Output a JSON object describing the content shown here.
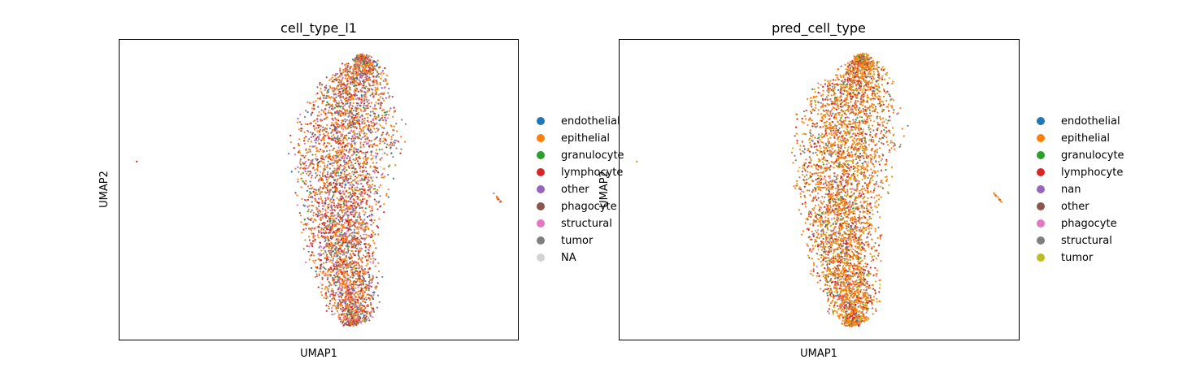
{
  "chart_data": [
    {
      "type": "scatter",
      "title": "cell_type_l1",
      "xlabel": "UMAP1",
      "ylabel": "UMAP2",
      "grid": false,
      "legend_placement": "right-outside",
      "legend": [
        {
          "label": "endothelial",
          "color": "#1f77b4"
        },
        {
          "label": "epithelial",
          "color": "#ff7f0e"
        },
        {
          "label": "granulocyte",
          "color": "#2ca02c"
        },
        {
          "label": "lymphocyte",
          "color": "#d62728"
        },
        {
          "label": "other",
          "color": "#9467bd"
        },
        {
          "label": "phagocyte",
          "color": "#8c564b"
        },
        {
          "label": "structural",
          "color": "#e377c2"
        },
        {
          "label": "tumor",
          "color": "#7f7f7f"
        },
        {
          "label": "NA",
          "color": "#d3d3d3"
        }
      ],
      "color_weights": [
        0.03,
        0.4,
        0.02,
        0.18,
        0.08,
        0.04,
        0.07,
        0.16,
        0.02
      ]
    },
    {
      "type": "scatter",
      "title": "pred_cell_type",
      "xlabel": "UMAP1",
      "ylabel": "UMAP2",
      "grid": false,
      "legend_placement": "right-outside",
      "legend": [
        {
          "label": "endothelial",
          "color": "#1f77b4"
        },
        {
          "label": "epithelial",
          "color": "#ff7f0e"
        },
        {
          "label": "granulocyte",
          "color": "#2ca02c"
        },
        {
          "label": "lymphocyte",
          "color": "#d62728"
        },
        {
          "label": "nan",
          "color": "#9467bd"
        },
        {
          "label": "other",
          "color": "#8c564b"
        },
        {
          "label": "phagocyte",
          "color": "#e377c2"
        },
        {
          "label": "structural",
          "color": "#7f7f7f"
        },
        {
          "label": "tumor",
          "color": "#bcbd22"
        }
      ],
      "color_weights": [
        0.01,
        0.55,
        0.02,
        0.15,
        0.01,
        0.03,
        0.02,
        0.11,
        0.1
      ]
    }
  ]
}
